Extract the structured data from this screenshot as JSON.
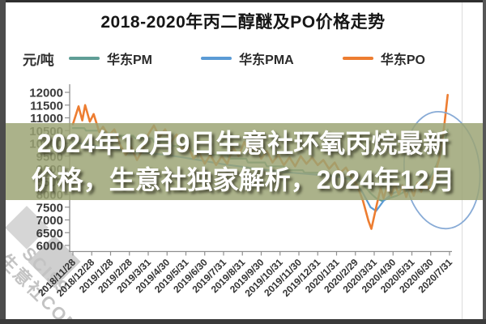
{
  "overlay": {
    "line1": "2024年12月9日生意社环氧丙烷最新",
    "line2": "价格，生意社独家解析，2024年12月"
  },
  "watermark": {
    "line1": "SCI99",
    "line2": "生意社COM"
  },
  "chart_data": {
    "type": "line",
    "title": "2018-2020年丙二醇醚及PO价格走势",
    "ylabel": "元/吨",
    "xlabel": "",
    "ylim": [
      6000,
      12000
    ],
    "ytick_step": 500,
    "yticks": [
      12000,
      11500,
      11000,
      10500,
      10000,
      9500,
      9000,
      8500,
      8000,
      7500,
      7000,
      6500,
      6000
    ],
    "grid": false,
    "legend_position": "top",
    "x_scale_note": "point x = fractional index into categories (0 = 2018/11/28, 20 = 2020/7/31)",
    "categories": [
      "2018/11/28",
      "2018/12/28",
      "2019/1/28",
      "2019/2/28",
      "2019/3/31",
      "2019/4/30",
      "2019/5/31",
      "2019/6/30",
      "2019/7/31",
      "2019/8/31",
      "2019/9/30",
      "2019/10/31",
      "2019/11/30",
      "2019/12/31",
      "2020/1/31",
      "2020/2/29",
      "2020/3/31",
      "2020/4/30",
      "2020/5/31",
      "2020/6/30",
      "2020/7/31"
    ],
    "series": [
      {
        "key": "pm",
        "name": "华东PM",
        "color": "#5f9e96",
        "points": [
          [
            0,
            10600
          ],
          [
            0.6,
            10600
          ],
          [
            0.7,
            10500
          ],
          [
            1.4,
            10500
          ],
          [
            1.5,
            10400
          ],
          [
            2.2,
            10400
          ],
          [
            2.3,
            10300
          ],
          [
            3.2,
            10300
          ],
          [
            3.3,
            10200
          ],
          [
            4.2,
            10200
          ],
          [
            4.3,
            10050
          ],
          [
            5.2,
            10050
          ],
          [
            5.3,
            9900
          ],
          [
            6.2,
            9900
          ],
          [
            6.3,
            9700
          ],
          [
            7.2,
            9700
          ],
          [
            7.3,
            9550
          ],
          [
            8.2,
            9550
          ],
          [
            8.3,
            9400
          ],
          [
            9.2,
            9400
          ],
          [
            9.3,
            9250
          ],
          [
            10.2,
            9250
          ],
          [
            10.3,
            9100
          ],
          [
            11.2,
            9100
          ],
          [
            11.3,
            8950
          ],
          [
            12.2,
            8950
          ],
          [
            12.3,
            8850
          ],
          [
            13.2,
            8850
          ],
          [
            13.3,
            8750
          ],
          [
            14.2,
            8750
          ],
          [
            14.3,
            8650
          ],
          [
            15.0,
            8650
          ],
          [
            15.4,
            8400
          ],
          [
            15.8,
            8050
          ],
          [
            16.1,
            7850
          ],
          [
            16.4,
            7750
          ],
          [
            16.8,
            7850
          ],
          [
            17.2,
            7950
          ],
          [
            17.6,
            8100
          ],
          [
            18.0,
            8250
          ],
          [
            18.5,
            8400
          ],
          [
            19.0,
            8700
          ],
          [
            19.3,
            9150
          ],
          [
            19.55,
            9600
          ],
          [
            19.75,
            10050
          ],
          [
            19.9,
            10550
          ]
        ]
      },
      {
        "key": "pma",
        "name": "华东PMA",
        "color": "#5b9bd5",
        "points": [
          [
            0,
            10050
          ],
          [
            0.8,
            9950
          ],
          [
            1.6,
            9850
          ],
          [
            2.4,
            9750
          ],
          [
            3.2,
            9680
          ],
          [
            4.0,
            9620
          ],
          [
            4.8,
            9560
          ],
          [
            5.6,
            9480
          ],
          [
            6.4,
            9380
          ],
          [
            7.2,
            9280
          ],
          [
            8.0,
            9180
          ],
          [
            8.8,
            9100
          ],
          [
            9.6,
            9020
          ],
          [
            10.4,
            8950
          ],
          [
            11.2,
            8880
          ],
          [
            12.0,
            8830
          ],
          [
            12.8,
            8780
          ],
          [
            13.6,
            8730
          ],
          [
            14.4,
            8650
          ],
          [
            15.0,
            8500
          ],
          [
            15.4,
            8050
          ],
          [
            15.8,
            7500
          ],
          [
            16.1,
            7350
          ],
          [
            16.5,
            7750
          ],
          [
            17.0,
            8050
          ],
          [
            17.5,
            8180
          ],
          [
            18.0,
            8280
          ],
          [
            18.6,
            8360
          ],
          [
            19.2,
            8450
          ],
          [
            19.9,
            8650
          ]
        ]
      },
      {
        "key": "po",
        "name": "华东PO",
        "color": "#ed7d31",
        "points": [
          [
            0,
            10750
          ],
          [
            0.3,
            11450
          ],
          [
            0.5,
            10900
          ],
          [
            0.65,
            11500
          ],
          [
            0.9,
            10850
          ],
          [
            1.1,
            11150
          ],
          [
            1.4,
            10450
          ],
          [
            1.6,
            10650
          ],
          [
            1.9,
            10300
          ],
          [
            2.2,
            10550
          ],
          [
            2.5,
            9950
          ],
          [
            2.8,
            9550
          ],
          [
            3.1,
            9850
          ],
          [
            3.4,
            9350
          ],
          [
            3.7,
            9750
          ],
          [
            4.0,
            10350
          ],
          [
            4.3,
            10700
          ],
          [
            4.6,
            10250
          ],
          [
            4.9,
            10550
          ],
          [
            5.2,
            10050
          ],
          [
            5.5,
            10350
          ],
          [
            5.8,
            9750
          ],
          [
            6.1,
            9950
          ],
          [
            6.4,
            9400
          ],
          [
            6.7,
            9650
          ],
          [
            7.0,
            9200
          ],
          [
            7.3,
            9550
          ],
          [
            7.6,
            9150
          ],
          [
            7.9,
            9500
          ],
          [
            8.2,
            9200
          ],
          [
            8.5,
            9850
          ],
          [
            8.8,
            9500
          ],
          [
            9.1,
            10050
          ],
          [
            9.4,
            9600
          ],
          [
            9.7,
            9900
          ],
          [
            10.0,
            9400
          ],
          [
            10.3,
            9700
          ],
          [
            10.6,
            9250
          ],
          [
            10.9,
            9550
          ],
          [
            11.2,
            9150
          ],
          [
            11.5,
            9450
          ],
          [
            11.8,
            9100
          ],
          [
            12.1,
            9500
          ],
          [
            12.4,
            9200
          ],
          [
            12.7,
            9450
          ],
          [
            13.0,
            9150
          ],
          [
            13.3,
            9350
          ],
          [
            13.6,
            9000
          ],
          [
            13.9,
            9250
          ],
          [
            14.2,
            8850
          ],
          [
            14.5,
            9050
          ],
          [
            14.8,
            8650
          ],
          [
            15.1,
            8350
          ],
          [
            15.4,
            7750
          ],
          [
            15.7,
            6950
          ],
          [
            15.85,
            6650
          ],
          [
            16.0,
            7150
          ],
          [
            16.2,
            7800
          ],
          [
            16.35,
            8250
          ],
          [
            16.5,
            7850
          ],
          [
            16.7,
            8350
          ],
          [
            16.9,
            7950
          ],
          [
            17.1,
            8400
          ],
          [
            17.3,
            8000
          ],
          [
            17.5,
            8350
          ],
          [
            17.7,
            7900
          ],
          [
            17.9,
            8300
          ],
          [
            18.1,
            7950
          ],
          [
            18.3,
            8450
          ],
          [
            18.5,
            8100
          ],
          [
            18.7,
            8500
          ],
          [
            18.9,
            8200
          ],
          [
            19.1,
            8650
          ],
          [
            19.3,
            9000
          ],
          [
            19.45,
            9400
          ],
          [
            19.6,
            10000
          ],
          [
            19.75,
            10900
          ],
          [
            19.9,
            11900
          ]
        ]
      }
    ],
    "annotation": {
      "shape": "ellipse",
      "color": "#82a7d4",
      "x_index": 19.6,
      "x_radius_index": 2.0,
      "value_center": 8950,
      "value_radius": 2300,
      "tilt_deg": -6
    }
  }
}
